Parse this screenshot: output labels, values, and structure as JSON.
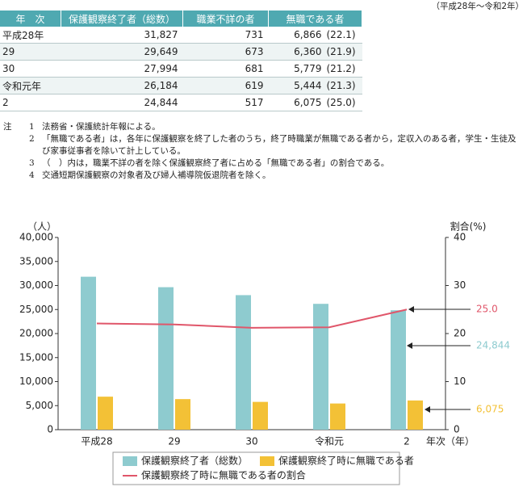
{
  "table": {
    "caption": "（平成28年～令和2年）",
    "header": [
      "年　次",
      "保護観察終了者（総数）",
      "職業不詳の者",
      "無職である者"
    ],
    "rows": [
      [
        "平成28年",
        "31,827",
        "731",
        "6,866",
        "(22.1)"
      ],
      [
        "29",
        "29,649",
        "673",
        "6,360",
        "(21.9)"
      ],
      [
        "30",
        "27,994",
        "681",
        "5,779",
        "(21.2)"
      ],
      [
        "令和元年",
        "26,184",
        "619",
        "5,444",
        "(21.3)"
      ],
      [
        "2",
        "24,844",
        "517",
        "6,075",
        "(25.0)"
      ]
    ]
  },
  "notes": {
    "label": "注",
    "items": [
      {
        "num": "1",
        "text": "法務省・保護統計年報による。"
      },
      {
        "num": "2",
        "text": "「無職である者」は，各年に保護観察を終了した者のうち，終了時職業が無職である者から，定収入のある者，学生・生徒及び家事従事者を除いて計上している。"
      },
      {
        "num": "3",
        "text": "（　）内は，職業不詳の者を除く保護観察終了者に占める「無職である者」の割合である。"
      },
      {
        "num": "4",
        "text": "交通短期保護観察の対象者及び婦人補導院仮退院者を除く。"
      }
    ]
  },
  "chart_data": {
    "type": "bar",
    "y_label": "（人）",
    "y2_label": "割合(%)",
    "x_label": "年次（年）",
    "categories": [
      "平成28",
      "29",
      "30",
      "令和元",
      "2"
    ],
    "series": [
      {
        "name": "保護観察終了者（総数）",
        "color": "#8ecbcf",
        "values": [
          31827,
          29649,
          27994,
          26184,
          24844
        ],
        "value_labels": [
          null,
          null,
          null,
          null,
          "24,844"
        ]
      },
      {
        "name": "保護観察終了時に無職である者",
        "color": "#f3c136",
        "values": [
          6866,
          6360,
          5779,
          5444,
          6075
        ],
        "value_labels": [
          null,
          null,
          null,
          null,
          "6,075"
        ]
      },
      {
        "name": "保護観察終了時に無職である者の割合",
        "type": "line",
        "axis": "y2",
        "color": "#e0566a",
        "values": [
          22.1,
          21.9,
          21.2,
          21.3,
          25.0
        ],
        "value_labels": [
          null,
          null,
          null,
          null,
          "25.0"
        ]
      }
    ],
    "ylim": [
      0,
      40000
    ],
    "yticks": [
      0,
      {
        "value": 5000,
        "label": "5,000"
      },
      {
        "value": 10000,
        "label": "10,000"
      },
      {
        "value": 15000,
        "label": "15,000"
      },
      {
        "value": 20000,
        "label": "20,000"
      },
      {
        "value": 25000,
        "label": "25,000"
      },
      {
        "value": 30000,
        "label": "30,000"
      },
      {
        "value": 35000,
        "label": "35,000"
      },
      {
        "value": 40000,
        "label": "40,000"
      }
    ],
    "y2lim": [
      0,
      40
    ],
    "y2ticks": [
      0,
      10,
      20,
      30,
      40
    ],
    "legend": "bottom"
  }
}
